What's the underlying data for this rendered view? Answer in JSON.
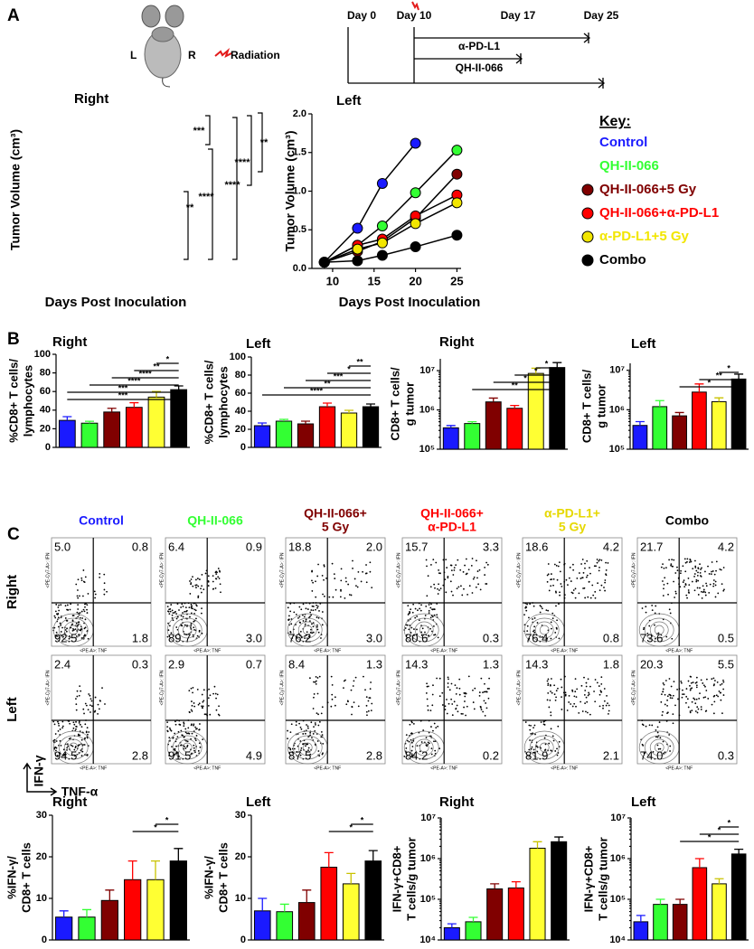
{
  "panels": [
    "A",
    "B",
    "C"
  ],
  "mouse": {
    "left": "L",
    "right": "R",
    "radiation": "Radiation"
  },
  "timeline": {
    "days": [
      "Day 0",
      "Day 10",
      "Day 17",
      "Day 25"
    ],
    "treatments": [
      "α-PD-L1",
      "QH-II-066"
    ]
  },
  "chart_data": [
    {
      "type": "line",
      "title": "Right",
      "xlabel": "Days Post Inoculation",
      "ylabel": "Tumor Volume (cm³)",
      "series": [],
      "annotations": [
        "***",
        "**",
        "****",
        "**",
        "****",
        "****"
      ]
    },
    {
      "type": "line",
      "title": "Left",
      "xlabel": "Days Post Inoculation",
      "ylabel": "Tumor Volume (cm³)",
      "x": [
        9,
        13,
        16,
        20,
        25
      ],
      "xlim": [
        7.5,
        25.5
      ],
      "xticks": [
        10,
        15,
        20,
        25
      ],
      "ylim": [
        0,
        2
      ],
      "yticks": [
        {
          "value": 0,
          "label": "0.0"
        },
        0.5,
        {
          "value": 1,
          "label": "1.0"
        },
        1.5,
        {
          "value": 2,
          "label": "2.0"
        }
      ],
      "legend_title": "Key:",
      "key_markers": [
        false,
        false,
        true,
        true,
        true,
        true
      ],
      "series": [
        {
          "name": "Control",
          "color": "#1a1aff",
          "values": [
            0.08,
            0.52,
            1.1,
            1.62,
            null
          ]
        },
        {
          "name": "QH-II-066",
          "color": "#33ff33",
          "values": [
            0.08,
            0.3,
            0.55,
            0.98,
            1.53
          ]
        },
        {
          "name": "QH-II-066+5 Gy",
          "color": "#800000",
          "values": [
            0.08,
            0.22,
            0.35,
            0.65,
            1.22
          ]
        },
        {
          "name": "QH-II-066+α-PD-L1",
          "color": "#ff0000",
          "values": [
            0.08,
            0.3,
            0.38,
            0.68,
            0.95
          ]
        },
        {
          "name": "α-PD-L1+5 Gy",
          "color": "#f2e600",
          "values": [
            0.08,
            0.25,
            0.33,
            0.58,
            0.85
          ]
        },
        {
          "name": "Combo",
          "color": "#000000",
          "values": [
            0.08,
            0.1,
            0.17,
            0.28,
            0.43
          ]
        }
      ]
    },
    {
      "type": "bar",
      "title": "Right",
      "ylabel": [
        "%CD8+ T cells/",
        "lymphocytes"
      ],
      "ylim": [
        0,
        100
      ],
      "yticks": [
        0,
        20,
        40,
        60,
        80,
        100
      ],
      "colors": [
        "#1a1aff",
        "#33ff33",
        "#800000",
        "#ff0000",
        "#ffff33",
        "#000000"
      ],
      "values": [
        29,
        26,
        38,
        43,
        54,
        62
      ],
      "errors": [
        4,
        2,
        4,
        5,
        6,
        4
      ],
      "annotations": [
        "*",
        "**",
        "****",
        "****",
        "***",
        "***"
      ]
    },
    {
      "type": "bar",
      "title": "Left",
      "ylabel": [
        "%CD8+ T cells/",
        "lymphocytes"
      ],
      "ylim": [
        0,
        100
      ],
      "yticks": [
        0,
        20,
        40,
        60,
        80,
        100
      ],
      "colors": [
        "#1a1aff",
        "#33ff33",
        "#800000",
        "#ff0000",
        "#ffff33",
        "#000000"
      ],
      "values": [
        24,
        29,
        26,
        45,
        38,
        45
      ],
      "errors": [
        3,
        2,
        3,
        4,
        3,
        3
      ],
      "annotations": [
        "**",
        "*",
        "***",
        "**",
        "****"
      ]
    },
    {
      "type": "bar",
      "title": "Right",
      "ylabel": [
        "CD8+ T cells/",
        "g tumor"
      ],
      "log": true,
      "ylim": [
        100000,
        20000000
      ],
      "yticks": [
        {
          "value": 100000,
          "label": "10⁵"
        },
        {
          "value": 1000000,
          "label": "10⁶"
        },
        {
          "value": 10000000,
          "label": "10⁷"
        }
      ],
      "colors": [
        "#1a1aff",
        "#33ff33",
        "#800000",
        "#ff0000",
        "#ffff33",
        "#000000"
      ],
      "values": [
        350000,
        450000,
        1600000,
        1100000,
        8500000,
        12000000
      ],
      "errors": [
        50000,
        50000,
        400000,
        200000,
        3000000,
        4000000
      ],
      "annotations": [
        "*",
        "*",
        "*",
        "**"
      ]
    },
    {
      "type": "bar",
      "title": "Left",
      "ylabel": [
        "CD8+ T cells/",
        "g tumor"
      ],
      "log": true,
      "ylim": [
        100000,
        15000000
      ],
      "yticks": [
        {
          "value": 100000,
          "label": "10⁵"
        },
        {
          "value": 1000000,
          "label": "10⁶"
        },
        {
          "value": 10000000,
          "label": "10⁷"
        }
      ],
      "colors": [
        "#1a1aff",
        "#33ff33",
        "#800000",
        "#ff0000",
        "#ffff33",
        "#000000"
      ],
      "values": [
        400000,
        1200000,
        700000,
        2800000,
        1600000,
        6000000
      ],
      "errors": [
        100000,
        500000,
        150000,
        1700000,
        400000,
        2000000
      ],
      "annotations": [
        "*",
        "**",
        "*"
      ]
    },
    {
      "type": "bar",
      "title": "Right",
      "ylabel": [
        "%IFN-γ/",
        "CD8+ T cells"
      ],
      "ylim": [
        0,
        30
      ],
      "yticks": [
        0,
        10,
        20,
        30
      ],
      "colors": [
        "#1a1aff",
        "#33ff33",
        "#800000",
        "#ff0000",
        "#ffff33",
        "#000000"
      ],
      "values": [
        5.5,
        5.5,
        9.5,
        14.5,
        14.5,
        19
      ],
      "errors": [
        1.5,
        1.8,
        2.5,
        4.5,
        4.5,
        3
      ],
      "annotations": [
        "*",
        "*"
      ]
    },
    {
      "type": "bar",
      "title": "Left",
      "ylabel": [
        "%IFN-γ/",
        "CD8+ T cells"
      ],
      "ylim": [
        0,
        30
      ],
      "yticks": [
        0,
        10,
        20,
        30
      ],
      "colors": [
        "#1a1aff",
        "#33ff33",
        "#800000",
        "#ff0000",
        "#ffff33",
        "#000000"
      ],
      "values": [
        7,
        6.8,
        9,
        17.5,
        13.5,
        19
      ],
      "errors": [
        3,
        1.8,
        3,
        3.5,
        2.5,
        2.5
      ],
      "annotations": [
        "*",
        "*"
      ]
    },
    {
      "type": "bar",
      "title": "Right",
      "ylabel": [
        "IFN-γ+CD8+",
        "T cells/g tumor"
      ],
      "log": true,
      "ylim": [
        10000,
        10000000
      ],
      "yticks": [
        {
          "value": 10000,
          "label": "10⁴"
        },
        {
          "value": 100000,
          "label": "10⁵"
        },
        {
          "value": 1000000,
          "label": "10⁶"
        },
        {
          "value": 10000000,
          "label": "10⁷"
        }
      ],
      "colors": [
        "#1a1aff",
        "#33ff33",
        "#800000",
        "#ff0000",
        "#ffff33",
        "#000000"
      ],
      "values": [
        20000,
        28000,
        180000,
        190000,
        1800000,
        2600000
      ],
      "errors": [
        5000,
        8000,
        60000,
        80000,
        800000,
        800000
      ],
      "annotations": []
    },
    {
      "type": "bar",
      "title": "Left",
      "ylabel": [
        "IFN-γ+CD8+",
        "T cells/g tumor"
      ],
      "log": true,
      "ylim": [
        10000,
        10000000
      ],
      "yticks": [
        {
          "value": 10000,
          "label": "10⁴"
        },
        {
          "value": 100000,
          "label": "10⁵"
        },
        {
          "value": 1000000,
          "label": "10⁶"
        },
        {
          "value": 10000000,
          "label": "10⁷"
        }
      ],
      "colors": [
        "#1a1aff",
        "#33ff33",
        "#800000",
        "#ff0000",
        "#ffff33",
        "#000000"
      ],
      "values": [
        28000,
        75000,
        75000,
        600000,
        240000,
        1300000
      ],
      "errors": [
        12000,
        25000,
        25000,
        400000,
        80000,
        400000
      ],
      "annotations": [
        "*",
        "*",
        "*"
      ]
    }
  ],
  "flow": {
    "columns": [
      [
        "Control"
      ],
      [
        "QH-II-066"
      ],
      [
        "QH-II-066+",
        "5 Gy"
      ],
      [
        "QH-II-066+",
        "α-PD-L1"
      ],
      [
        "α-PD-L1+",
        "5 Gy"
      ],
      [
        "Combo"
      ]
    ],
    "column_colors": [
      "#1a1aff",
      "#33ff33",
      "#800000",
      "#ff0000",
      "#e6d800",
      "#000000"
    ],
    "rows": [
      "Right",
      "Left"
    ],
    "y_axis": "IFN-γ",
    "x_axis": "TNF-α",
    "tiny_x": "<PE-A>: TNF",
    "tiny_y": "<PE-Cy7-A>: IFN",
    "quadrants": [
      [
        [
          "5.0",
          "0.8",
          "92.5",
          "1.8"
        ],
        [
          "6.4",
          "0.9",
          "89.7",
          "3.0"
        ],
        [
          "18.8",
          "2.0",
          "76.2",
          "3.0"
        ],
        [
          "15.7",
          "3.3",
          "80.6",
          "0.3"
        ],
        [
          "18.6",
          "4.2",
          "76.4",
          "0.8"
        ],
        [
          "21.7",
          "4.2",
          "73.6",
          "0.5"
        ]
      ],
      [
        [
          "2.4",
          "0.3",
          "94.5",
          "2.8"
        ],
        [
          "2.9",
          "0.7",
          "91.5",
          "4.9"
        ],
        [
          "8.4",
          "1.3",
          "87.5",
          "2.8"
        ],
        [
          "14.3",
          "1.3",
          "84.2",
          "0.2"
        ],
        [
          "14.3",
          "1.8",
          "81.9",
          "2.1"
        ],
        [
          "20.3",
          "5.5",
          "74.0",
          "0.3"
        ]
      ]
    ]
  }
}
